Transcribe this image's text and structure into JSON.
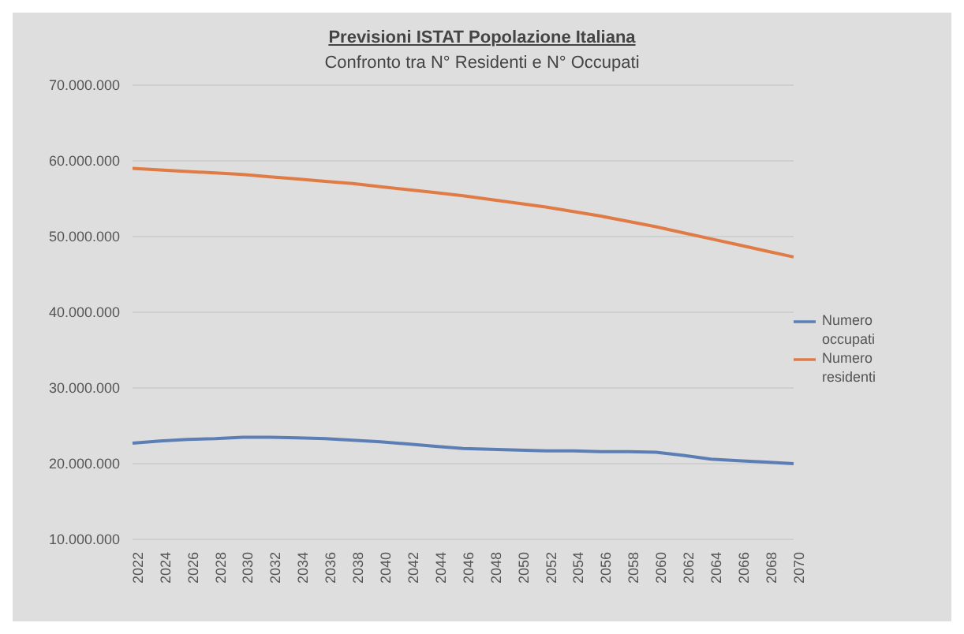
{
  "chart_data": {
    "type": "line",
    "title": "Previsioni ISTAT Popolazione Italiana",
    "subtitle": "Confronto tra N° Residenti e N° Occupati",
    "categories": [
      "2022",
      "2024",
      "2026",
      "2028",
      "2030",
      "2032",
      "2034",
      "2036",
      "2038",
      "2040",
      "2042",
      "2044",
      "2046",
      "2048",
      "2050",
      "2052",
      "2054",
      "2056",
      "2058",
      "2060",
      "2062",
      "2064",
      "2066",
      "2068",
      "2070"
    ],
    "series": [
      {
        "name": "Numero occupati",
        "color": "#5b7fb5",
        "values": [
          22700000,
          23000000,
          23200000,
          23300000,
          23500000,
          23500000,
          23400000,
          23300000,
          23100000,
          22900000,
          22600000,
          22300000,
          22000000,
          21900000,
          21800000,
          21700000,
          21700000,
          21600000,
          21600000,
          21500000,
          21100000,
          20600000,
          20400000,
          20200000,
          20000000
        ]
      },
      {
        "name": "Numero residenti",
        "color": "#e07b45",
        "values": [
          59000000,
          58800000,
          58600000,
          58400000,
          58200000,
          57900000,
          57600000,
          57300000,
          57000000,
          56600000,
          56200000,
          55800000,
          55400000,
          54900000,
          54400000,
          53900000,
          53300000,
          52700000,
          52000000,
          51300000,
          50500000,
          49700000,
          48900000,
          48100000,
          47300000
        ]
      }
    ],
    "ylim": [
      10000000,
      70000000
    ],
    "yticks": [
      {
        "value": 10000000,
        "label": "10.000.000"
      },
      {
        "value": 20000000,
        "label": "20.000.000"
      },
      {
        "value": 30000000,
        "label": "30.000.000"
      },
      {
        "value": 40000000,
        "label": "40.000.000"
      },
      {
        "value": 50000000,
        "label": "50.000.000"
      },
      {
        "value": 60000000,
        "label": "60.000.000"
      },
      {
        "value": 70000000,
        "label": "70.000.000"
      }
    ],
    "grid": "y",
    "legend": "right",
    "marker": "none",
    "line_style": "solid"
  }
}
